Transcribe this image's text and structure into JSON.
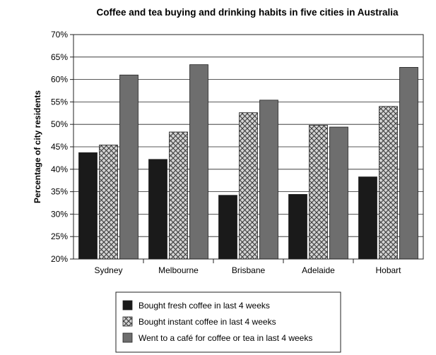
{
  "chart_data": {
    "type": "bar",
    "title": "Coffee and tea buying and drinking habits in five cities in Australia",
    "xlabel": "",
    "ylabel": "Percentage of city residents",
    "ylim": [
      20,
      70
    ],
    "yticks": [
      20,
      25,
      30,
      35,
      40,
      45,
      50,
      55,
      60,
      65,
      70
    ],
    "ytick_labels": [
      "20%",
      "25%",
      "30%",
      "35%",
      "40%",
      "45%",
      "50%",
      "55%",
      "60%",
      "65%",
      "70%"
    ],
    "grid": true,
    "legend_position": "bottom-center",
    "categories": [
      "Sydney",
      "Melbourne",
      "Brisbane",
      "Adelaide",
      "Hobart"
    ],
    "series": [
      {
        "name": "Bought fresh coffee in last 4 weeks",
        "values": [
          43.7,
          42.2,
          34.2,
          34.4,
          38.3
        ],
        "fill": "#1a1a1a"
      },
      {
        "name": "Bought instant coffee in last 4 weeks",
        "values": [
          45.4,
          48.3,
          52.6,
          49.8,
          54.0
        ],
        "fill": "crosshatch"
      },
      {
        "name": "Went to a café for coffee or tea in last 4 weeks",
        "values": [
          61.0,
          63.3,
          55.4,
          49.4,
          62.7
        ],
        "fill": "#6e6e6e"
      }
    ]
  }
}
